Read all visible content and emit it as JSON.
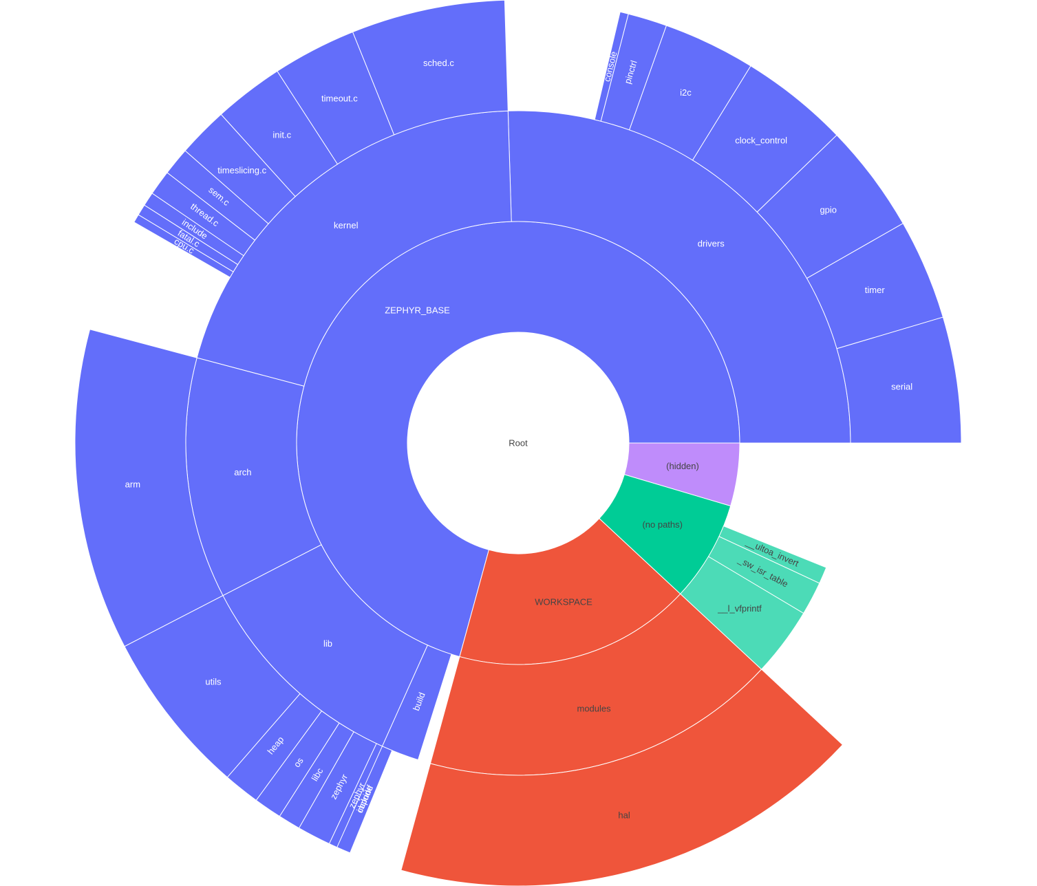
{
  "chart_data": {
    "type": "sunburst",
    "root_label": "Root",
    "colors": {
      "ZEPHYR_BASE": "#636efa",
      "WORKSPACE": "#ef553b",
      "(no paths)": "#00cc96",
      "(no paths) children": "#4cdbb7",
      "(hidden)": "#bf8cfb"
    },
    "nodes": [
      {
        "name": "ZEPHYR_BASE",
        "value": 69.4,
        "children": [
          {
            "name": "drivers",
            "value": 25.0,
            "children": [
              {
                "name": "serial",
                "value": 4.5
              },
              {
                "name": "timer",
                "value": 3.6
              },
              {
                "name": "gpio",
                "value": 3.9
              },
              {
                "name": "clock_control",
                "value": 3.9
              },
              {
                "name": "i2c",
                "value": 3.3
              },
              {
                "name": "pinctrl",
                "value": 1.4
              },
              {
                "name": "console",
                "value": 0.3
              }
            ]
          },
          {
            "name": "kernel",
            "value": 20.0,
            "children": [
              {
                "name": "sched.c",
                "value": 5.5
              },
              {
                "name": "timeout.c",
                "value": 3.0
              },
              {
                "name": "init.c",
                "value": 2.5
              },
              {
                "name": "timeslicing.c",
                "value": 1.8
              },
              {
                "name": "sem.c",
                "value": 1.0
              },
              {
                "name": "thread.c",
                "value": 0.9
              },
              {
                "name": "include",
                "value": 0.5
              },
              {
                "name": "fatal.c",
                "value": 0.4
              },
              {
                "name": "cpu.c",
                "value": 0.3
              }
            ]
          },
          {
            "name": "arch",
            "value": 11.5,
            "children": [
              {
                "name": "arm",
                "value": 11.5
              }
            ]
          },
          {
            "name": "lib",
            "value": 10.5,
            "children": [
              {
                "name": "utils",
                "value": 5.9
              },
              {
                "name": "heap",
                "value": 1.3
              },
              {
                "name": "os",
                "value": 1.0
              },
              {
                "name": "libc",
                "value": 0.8
              },
              {
                "name": "zephyr",
                "value": 1.2
              },
              {
                "name": "zephyr",
                "value": 0.4
              },
              {
                "name": "cbprintf",
                "value": 0.3
              }
            ]
          },
          {
            "name": "build",
            "value": 1.8,
            "children": [
              {
                "name": "include",
                "value": 0.5
              }
            ]
          }
        ]
      },
      {
        "name": "WORKSPACE",
        "value": 17.0,
        "children": [
          {
            "name": "modules",
            "value": 17.0,
            "children": [
              {
                "name": "hal",
                "value": 17.0
              }
            ]
          }
        ]
      },
      {
        "name": "(no paths)",
        "value": 7.2,
        "children": [
          {
            "name": "__l_vfprintf",
            "value": 3.3
          },
          {
            "name": "_sw_isr_table",
            "value": 1.6
          },
          {
            "name": "__ultoa_invert",
            "value": 0.8
          }
        ]
      },
      {
        "name": "(hidden)",
        "value": 4.5
      }
    ]
  }
}
